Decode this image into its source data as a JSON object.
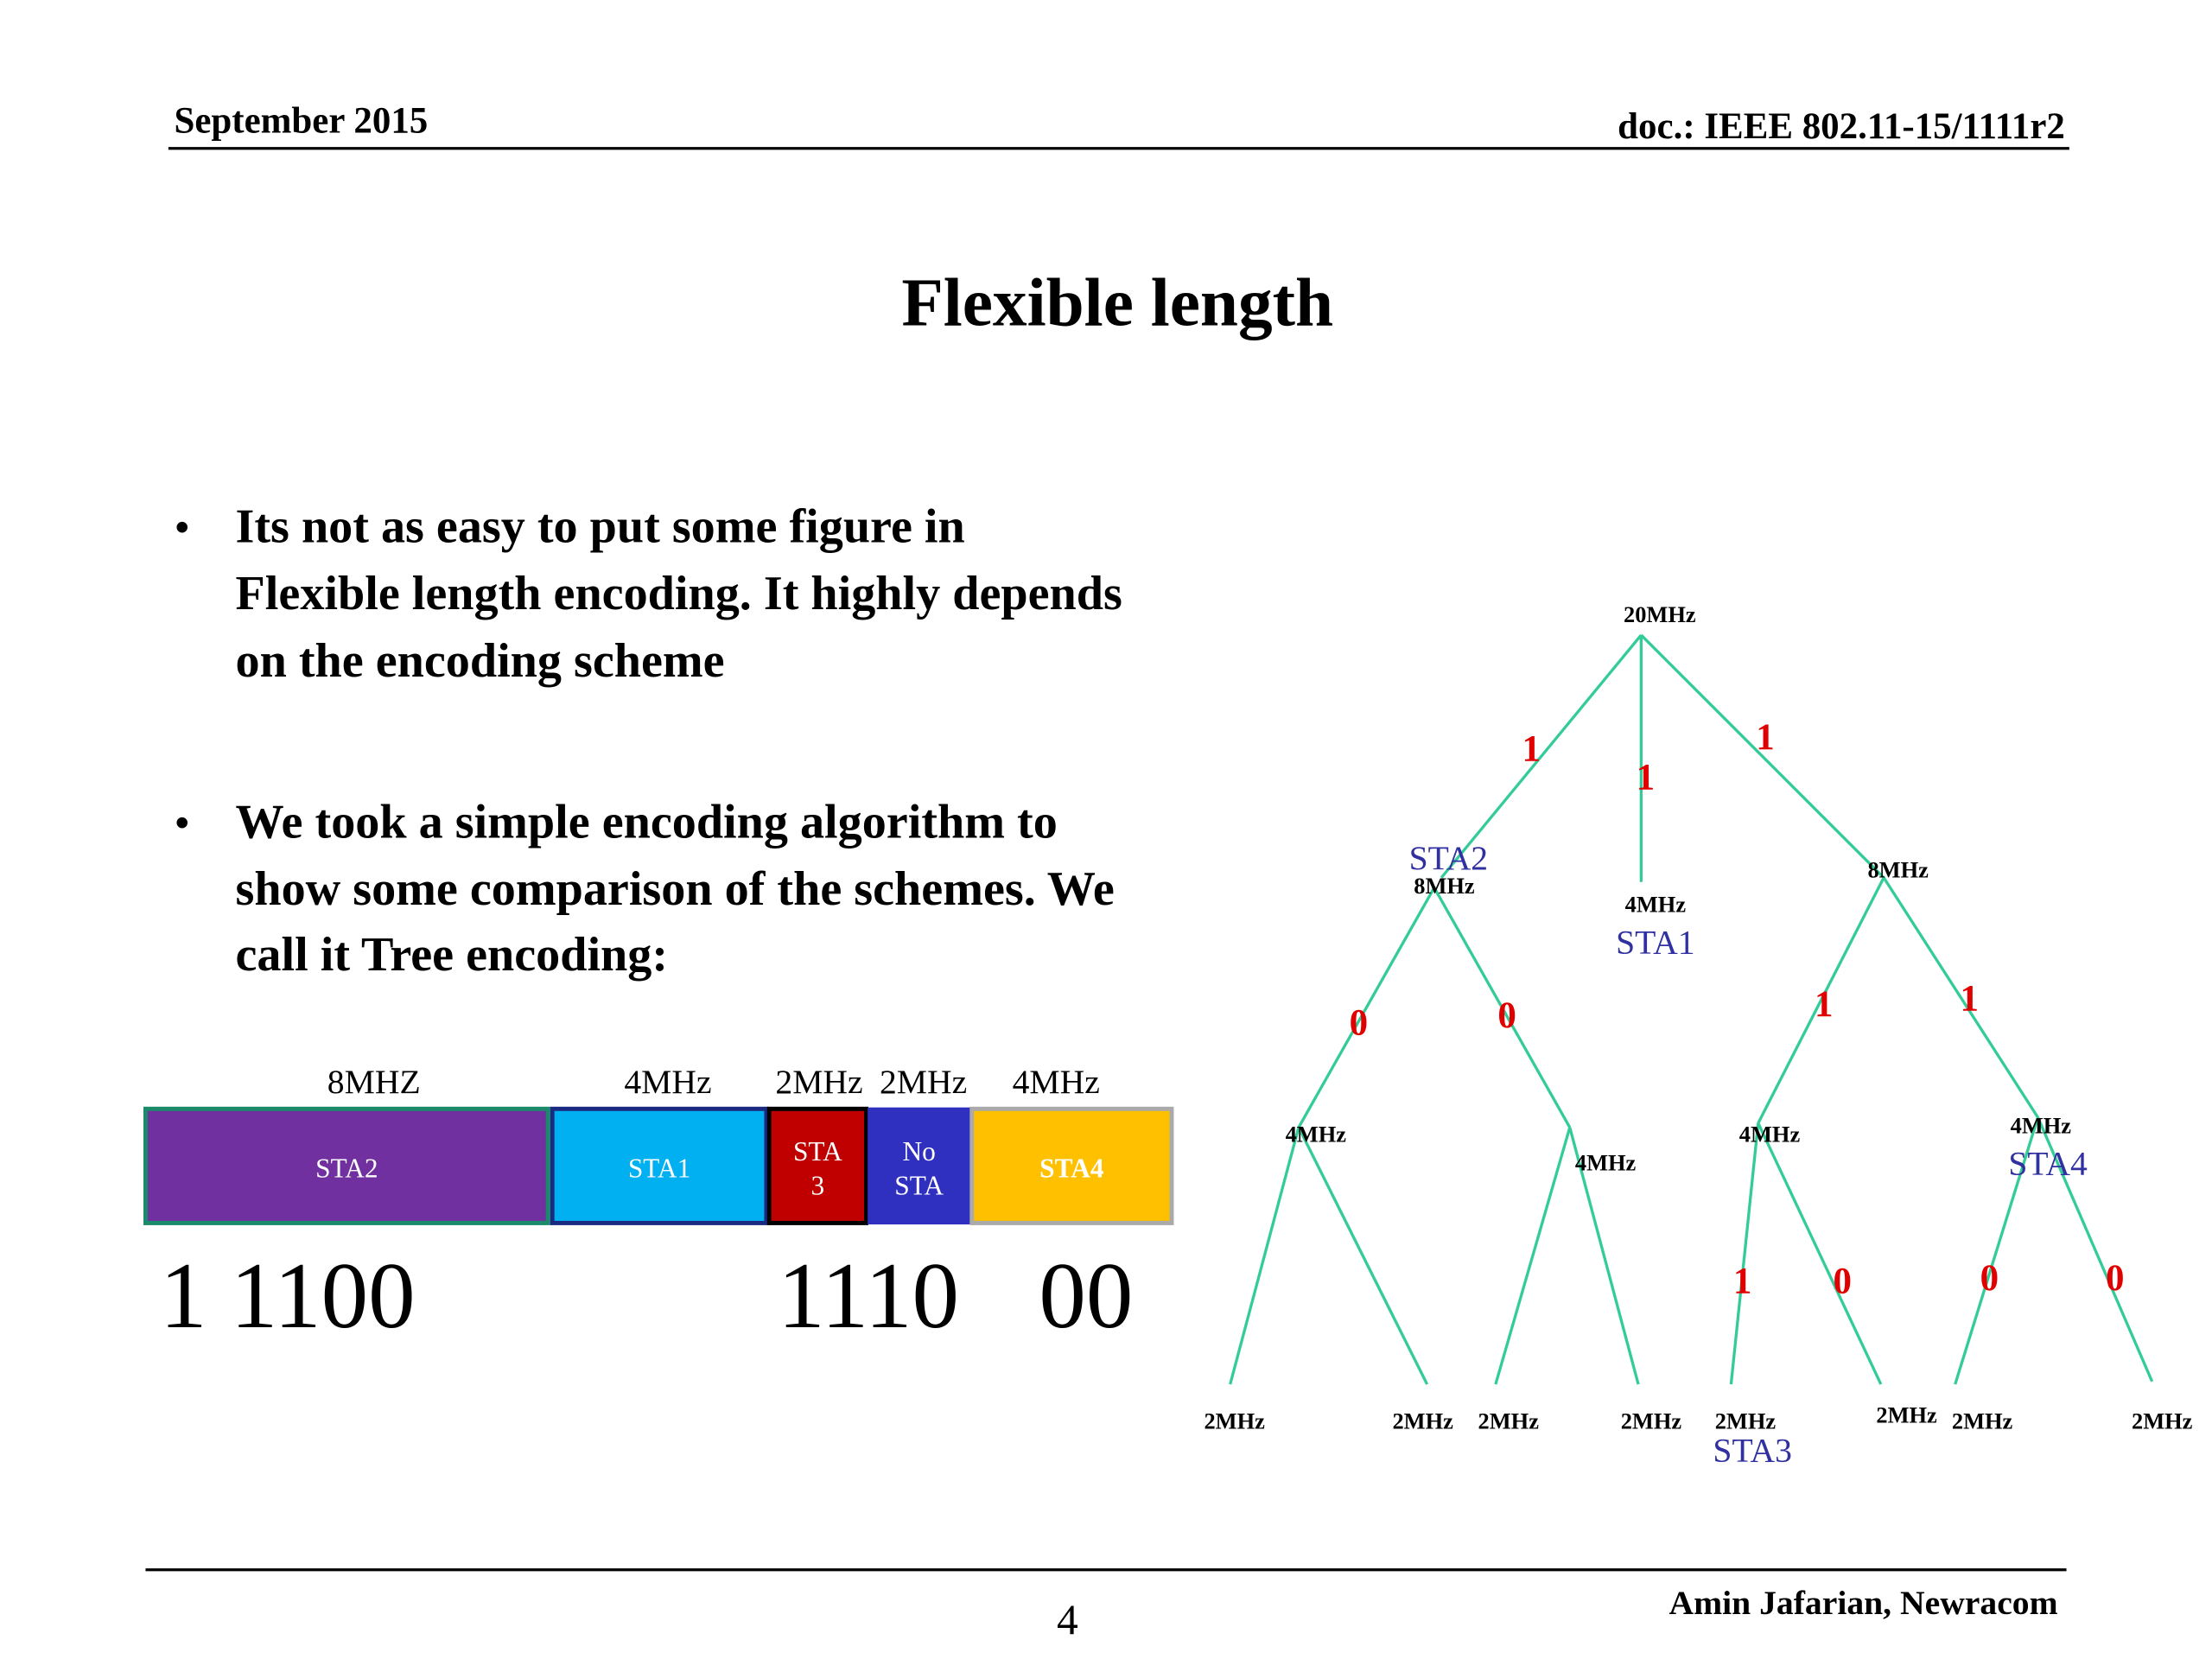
{
  "header": {
    "date": "September 2015",
    "doc": "doc.: IEEE 802.11-15/1111r2"
  },
  "title": "Flexible length",
  "bullets": [
    {
      "lines": [
        "Its not as easy to put some figure in",
        "Flexible length encoding. It highly depends",
        "on the encoding scheme"
      ]
    },
    {
      "lines": [
        "We took a simple encoding algorithm to",
        "show some comparison of the schemes. We",
        "call it Tree encoding:"
      ]
    }
  ],
  "bar": {
    "labels": [
      "8MHZ",
      "4MHz",
      "2MHz",
      "2MHz",
      "4MHz"
    ],
    "segments": [
      {
        "lines": [
          "STA2"
        ]
      },
      {
        "lines": [
          "STA1"
        ]
      },
      {
        "lines": [
          "STA",
          "3"
        ]
      },
      {
        "lines": [
          "No",
          "STA"
        ]
      },
      {
        "lines": [
          "STA4"
        ]
      }
    ],
    "codes": [
      "1 1100",
      "1110",
      "00"
    ]
  },
  "tree": {
    "nodes": [
      {
        "label": "20MHz"
      },
      {
        "label": "8MHz",
        "sta": "STA2"
      },
      {
        "label": "4MHz",
        "sta": "STA1"
      },
      {
        "label": "8MHz"
      },
      {
        "label": "4MHz"
      },
      {
        "label": "4MHz"
      },
      {
        "label": "4MHz"
      },
      {
        "label": "4MHz",
        "sta": "STA4"
      },
      {
        "label": "2MHz"
      },
      {
        "label": "2MHz"
      },
      {
        "label": "2MHz"
      },
      {
        "label": "2MHz"
      },
      {
        "label": "2MHz",
        "sta": "STA3"
      },
      {
        "label": "2MHz"
      },
      {
        "label": "2MHz"
      },
      {
        "label": "2MHz"
      }
    ],
    "edges": [
      "1",
      "1",
      "1",
      "0",
      "0",
      "1",
      "1",
      "1",
      "0",
      "0",
      "0"
    ]
  },
  "footer": {
    "page": "4",
    "author": "Amin Jafarian, Newracom"
  }
}
